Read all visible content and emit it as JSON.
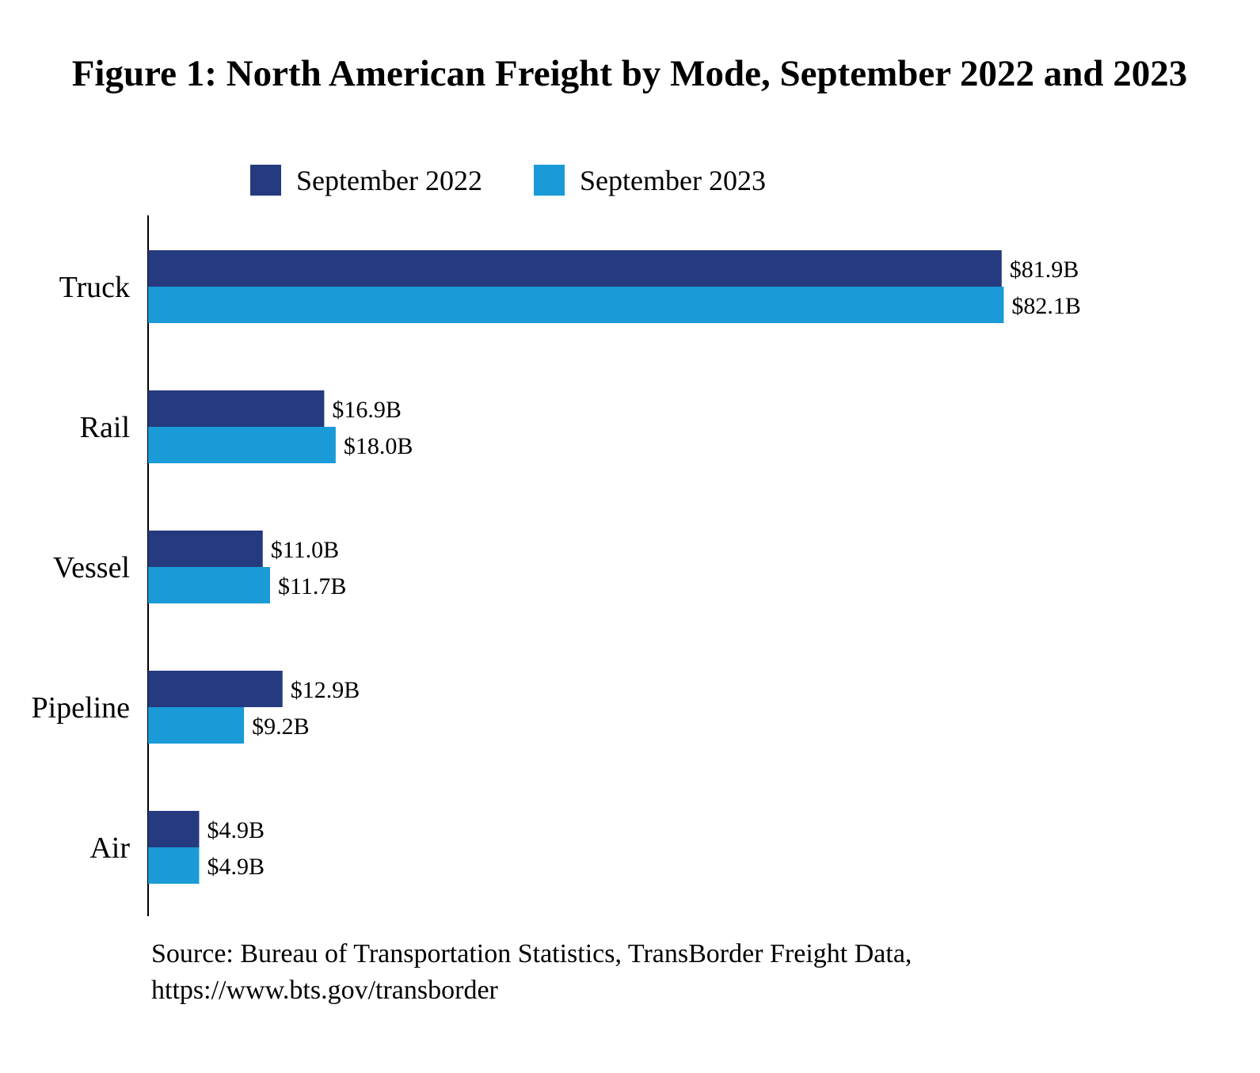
{
  "chart_data": {
    "type": "bar",
    "orientation": "horizontal",
    "title": "Figure 1: North American Freight by Mode, September 2022 and 2023",
    "categories": [
      "Truck",
      "Rail",
      "Vessel",
      "Pipeline",
      "Air"
    ],
    "series": [
      {
        "name": "September 2022",
        "color": "#253a7f",
        "values": [
          81.9,
          16.9,
          11.0,
          12.9,
          4.9
        ],
        "labels": [
          "$81.9B",
          "$16.9B",
          "$11.0B",
          "$12.9B",
          "$4.9B"
        ]
      },
      {
        "name": "September 2023",
        "color": "#1a9ad6",
        "values": [
          82.1,
          18.0,
          11.7,
          9.2,
          4.9
        ],
        "labels": [
          "$82.1B",
          "$18.0B",
          "$11.7B",
          "$9.2B",
          "$4.9B"
        ]
      }
    ],
    "xlabel": "",
    "ylabel": "",
    "xlim": [
      0,
      100
    ],
    "grid": false,
    "legend": "top-center",
    "unit": "billions of dollars"
  },
  "source": {
    "line1": "Source: Bureau of Transportation Statistics, TransBorder Freight Data,",
    "line2": "https://www.bts.gov/transborder"
  }
}
